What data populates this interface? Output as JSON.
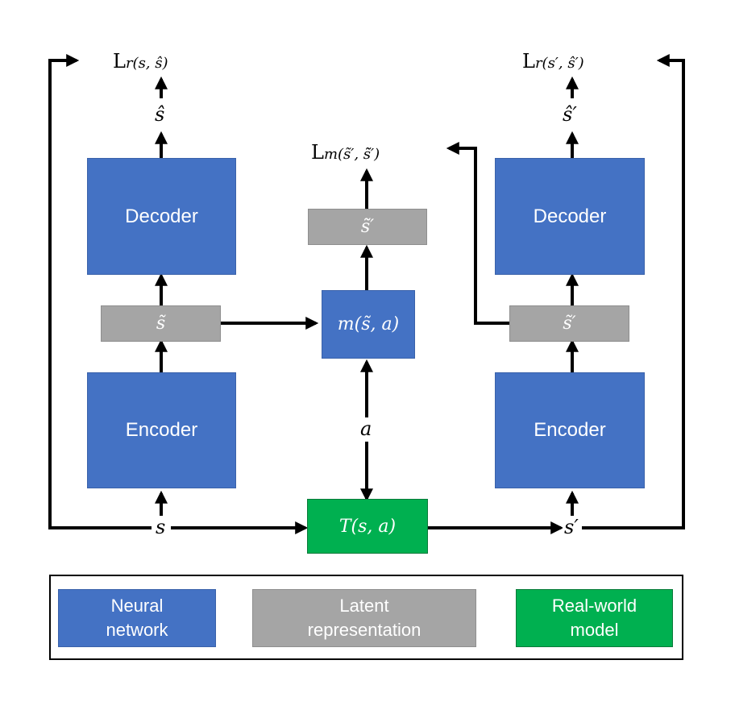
{
  "diagram": {
    "boxes": {
      "decoder_left": "Decoder",
      "decoder_right": "Decoder",
      "encoder_left": "Encoder",
      "encoder_right": "Encoder",
      "latent_s": "s̃",
      "latent_s_prime": "s̃′",
      "latent_predicted": "s̃̃′",
      "transition_model": "m(s̃, a)",
      "real_world": "T(s, a)"
    },
    "labels": {
      "loss_left": "r(s, ŝ)",
      "loss_center": "m(s̃′, s̃̃′)",
      "loss_right": "r(s′, ŝ′)",
      "loss_prefix": "L",
      "s_hat": "ŝ",
      "s_prime_hat": "ŝ′",
      "action": "a",
      "state": "s",
      "next_state": "s′"
    }
  },
  "legend": {
    "neural_network_line1": "Neural",
    "neural_network_line2": "network",
    "latent_line1": "Latent",
    "latent_line2": "representation",
    "real_world_line1": "Real-world",
    "real_world_line2": "model"
  },
  "colors": {
    "neural_network": "#4472C4",
    "latent": "#A5A5A5",
    "real_world": "#00B050",
    "arrow": "#000000"
  }
}
